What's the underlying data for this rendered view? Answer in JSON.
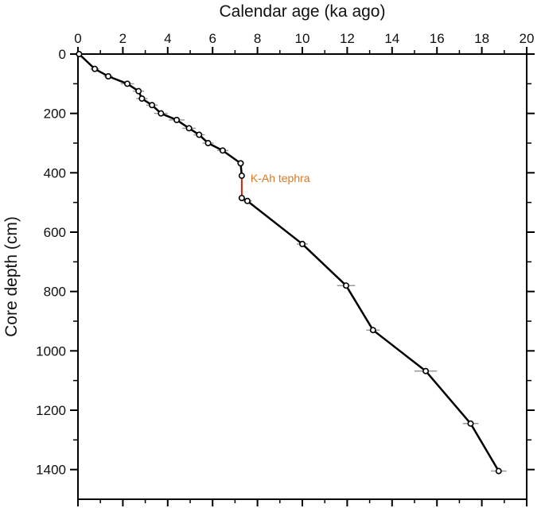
{
  "chart_data": {
    "type": "line",
    "xlabel": "Calendar age (ka ago)",
    "ylabel": "Core depth (cm)",
    "x_axis_position": "top",
    "y_inverted": true,
    "xlim": [
      0,
      20
    ],
    "ylim": [
      0,
      1500
    ],
    "x_ticks": [
      0,
      2,
      4,
      6,
      8,
      10,
      12,
      14,
      16,
      18,
      20
    ],
    "x_tick_labels": [
      "0",
      "2",
      "4",
      "6",
      "8",
      "10",
      "12",
      "14",
      "16",
      "18",
      "20"
    ],
    "y_ticks": [
      0,
      200,
      400,
      600,
      800,
      1000,
      1200,
      1400
    ],
    "y_tick_labels": [
      "0",
      "200",
      "400",
      "600",
      "800",
      "1000",
      "1200",
      "1400"
    ],
    "y_minor_step": 100,
    "x_minor_step": 1,
    "grid": false,
    "line_color": "#000000",
    "errorbar_color": "#999999",
    "series": [
      {
        "points": [
          {
            "x": 0.05,
            "y": 0,
            "err": 0
          },
          {
            "x": 0.75,
            "y": 50,
            "err": 0.2
          },
          {
            "x": 1.35,
            "y": 75,
            "err": 0.2
          },
          {
            "x": 2.2,
            "y": 100,
            "err": 0.3
          },
          {
            "x": 2.7,
            "y": 125,
            "err": 0.25
          },
          {
            "x": 2.85,
            "y": 150,
            "err": 0.25
          },
          {
            "x": 3.3,
            "y": 172,
            "err": 0.25
          },
          {
            "x": 3.7,
            "y": 200,
            "err": 0.3
          },
          {
            "x": 4.4,
            "y": 222,
            "err": 0.35
          },
          {
            "x": 4.95,
            "y": 250,
            "err": 0.3
          },
          {
            "x": 5.4,
            "y": 272,
            "err": 0.25
          },
          {
            "x": 5.8,
            "y": 300,
            "err": 0.25
          },
          {
            "x": 6.45,
            "y": 325,
            "err": 0.25
          },
          {
            "x": 7.25,
            "y": 368,
            "err": 0.15
          },
          {
            "x": 7.3,
            "y": 410,
            "err": 0
          },
          {
            "x": 7.3,
            "y": 485,
            "err": 0.15
          },
          {
            "x": 7.55,
            "y": 495,
            "err": 0.2
          },
          {
            "x": 10,
            "y": 640,
            "err": 0.25
          },
          {
            "x": 11.95,
            "y": 780,
            "err": 0.4
          },
          {
            "x": 13.15,
            "y": 930,
            "err": 0.3
          },
          {
            "x": 15.5,
            "y": 1068,
            "err": 0.5
          },
          {
            "x": 17.5,
            "y": 1245,
            "err": 0.35
          },
          {
            "x": 18.75,
            "y": 1405,
            "err": 0.35
          }
        ]
      }
    ],
    "annotation": {
      "text": "K-Ah tephra",
      "color": "#e07820",
      "marker_color": "#cc2200",
      "x_from": 7.3,
      "y_from": 410,
      "y_to": 485
    }
  }
}
